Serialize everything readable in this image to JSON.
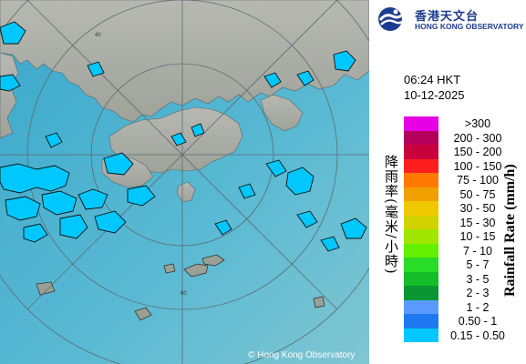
{
  "header": {
    "org_name_zh": "香港天文台",
    "org_name_en": "HONG KONG OBSERVATORY"
  },
  "observation": {
    "time": "06:24 HKT",
    "date": "10-12-2025"
  },
  "legend": {
    "title_zh": "降雨率(毫米/小時)",
    "title_en": "Rainfall Rate (mm/h)",
    "items": [
      {
        "label": ">300",
        "color": "#e600e6"
      },
      {
        "label": "200 - 300",
        "color": "#b4005a"
      },
      {
        "label": "150 - 200",
        "color": "#c8003c"
      },
      {
        "label": "100 - 150",
        "color": "#ff1e1e"
      },
      {
        "label": "75 - 100",
        "color": "#ff7800"
      },
      {
        "label": "50 - 75",
        "color": "#f0a000"
      },
      {
        "label": "30 - 50",
        "color": "#f0c800"
      },
      {
        "label": "15 - 30",
        "color": "#d2d200"
      },
      {
        "label": "10 - 15",
        "color": "#a0e600"
      },
      {
        "label": "7 - 10",
        "color": "#64f000"
      },
      {
        "label": "5 - 7",
        "color": "#28dc28"
      },
      {
        "label": "3 - 5",
        "color": "#14be28"
      },
      {
        "label": "2 - 3",
        "color": "#0a9632"
      },
      {
        "label": "1 - 2",
        "color": "#5a9aff"
      },
      {
        "label": "0.50 - 1",
        "color": "#1e78f0"
      },
      {
        "label": "0.15 - 0.50",
        "color": "#00c8ff"
      }
    ]
  },
  "map": {
    "range_rings_km": [
      "40",
      "60"
    ],
    "copyright": "Hong Kong Observatory",
    "copyright_symbol": "©",
    "colors": {
      "sea": "#4ab0cf",
      "land": "#a9aba4",
      "rain_light": "#00c8ff",
      "rain_outline": "#1a1a1a",
      "rings": "#6a6a6a"
    }
  }
}
